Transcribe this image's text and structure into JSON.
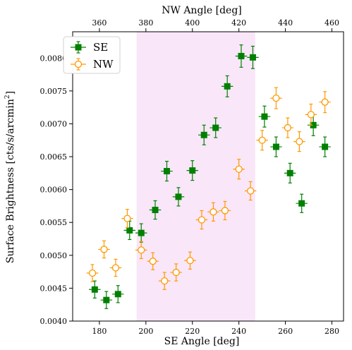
{
  "chart_data": {
    "type": "scatter",
    "title": "",
    "xlabel": "SE Angle [deg]",
    "x2label": "NW Angle [deg]",
    "ylabel": "Surface Brightness [cts/s/arcmin",
    "ylabel_superscript": "2",
    "ylabel_suffix": "]",
    "xlim": [
      168.5,
      285
    ],
    "x2lim": [
      348.5,
      465
    ],
    "ylim": [
      0.004,
      0.0084
    ],
    "xticks": [
      "180",
      "200",
      "220",
      "240",
      "260",
      "280"
    ],
    "xtick_values": [
      180,
      200,
      220,
      240,
      260,
      280
    ],
    "x2ticks": [
      "360",
      "380",
      "400",
      "420",
      "440",
      "460"
    ],
    "x2tick_values": [
      360,
      380,
      400,
      420,
      440,
      460
    ],
    "yticks": [
      "0.0040",
      "0.0045",
      "0.0050",
      "0.0055",
      "0.0060",
      "0.0065",
      "0.0070",
      "0.0075",
      "0.0080"
    ],
    "ytick_values": [
      0.004,
      0.0045,
      0.005,
      0.0055,
      0.006,
      0.0065,
      0.007,
      0.0075,
      0.008
    ],
    "shaded_region": {
      "x_from": 196,
      "x_to": 247,
      "color": "#f9e6f9"
    },
    "grid": false,
    "legend_position": "top-left",
    "series": [
      {
        "name": "SE",
        "axis": "bottom",
        "color": "#008000",
        "marker": "filled-square",
        "x_err": 2.5,
        "points": [
          {
            "x": 178,
            "y": 0.00448,
            "yerr": 0.00013
          },
          {
            "x": 183,
            "y": 0.00432,
            "yerr": 0.00013
          },
          {
            "x": 188,
            "y": 0.00441,
            "yerr": 0.00013
          },
          {
            "x": 193,
            "y": 0.00538,
            "yerr": 0.00014
          },
          {
            "x": 198,
            "y": 0.00534,
            "yerr": 0.00014
          },
          {
            "x": 204,
            "y": 0.00569,
            "yerr": 0.00014
          },
          {
            "x": 209,
            "y": 0.00628,
            "yerr": 0.00015
          },
          {
            "x": 214,
            "y": 0.00589,
            "yerr": 0.00014
          },
          {
            "x": 220,
            "y": 0.00629,
            "yerr": 0.00015
          },
          {
            "x": 225,
            "y": 0.00683,
            "yerr": 0.00015
          },
          {
            "x": 230,
            "y": 0.00694,
            "yerr": 0.00015
          },
          {
            "x": 235,
            "y": 0.00757,
            "yerr": 0.00016
          },
          {
            "x": 241,
            "y": 0.00803,
            "yerr": 0.00017
          },
          {
            "x": 246,
            "y": 0.00801,
            "yerr": 0.00017
          },
          {
            "x": 251,
            "y": 0.00711,
            "yerr": 0.00016
          },
          {
            "x": 256,
            "y": 0.00665,
            "yerr": 0.00015
          },
          {
            "x": 262,
            "y": 0.00625,
            "yerr": 0.00015
          },
          {
            "x": 267,
            "y": 0.00579,
            "yerr": 0.00014
          },
          {
            "x": 272,
            "y": 0.00698,
            "yerr": 0.00016
          },
          {
            "x": 277,
            "y": 0.00665,
            "yerr": 0.00015
          }
        ]
      },
      {
        "name": "NW",
        "axis": "top",
        "color": "#ff9900",
        "marker": "open-circle",
        "x_err": 2.5,
        "points": [
          {
            "x": 357,
            "y": 0.00473,
            "yerr": 0.00013
          },
          {
            "x": 362,
            "y": 0.00509,
            "yerr": 0.00013
          },
          {
            "x": 367,
            "y": 0.00481,
            "yerr": 0.00013
          },
          {
            "x": 372,
            "y": 0.00556,
            "yerr": 0.00014
          },
          {
            "x": 378,
            "y": 0.00508,
            "yerr": 0.00013
          },
          {
            "x": 383,
            "y": 0.00491,
            "yerr": 0.00013
          },
          {
            "x": 388,
            "y": 0.00461,
            "yerr": 0.00013
          },
          {
            "x": 393,
            "y": 0.00474,
            "yerr": 0.00013
          },
          {
            "x": 399,
            "y": 0.00492,
            "yerr": 0.00013
          },
          {
            "x": 404,
            "y": 0.00554,
            "yerr": 0.00014
          },
          {
            "x": 409,
            "y": 0.00566,
            "yerr": 0.00014
          },
          {
            "x": 414,
            "y": 0.00568,
            "yerr": 0.00014
          },
          {
            "x": 420,
            "y": 0.00631,
            "yerr": 0.00015
          },
          {
            "x": 425,
            "y": 0.00598,
            "yerr": 0.00014
          },
          {
            "x": 430,
            "y": 0.00675,
            "yerr": 0.00015
          },
          {
            "x": 436,
            "y": 0.00739,
            "yerr": 0.00016
          },
          {
            "x": 441,
            "y": 0.00694,
            "yerr": 0.00015
          },
          {
            "x": 446,
            "y": 0.00673,
            "yerr": 0.00015
          },
          {
            "x": 451,
            "y": 0.00714,
            "yerr": 0.00016
          },
          {
            "x": 457,
            "y": 0.00733,
            "yerr": 0.00016
          }
        ]
      }
    ]
  }
}
